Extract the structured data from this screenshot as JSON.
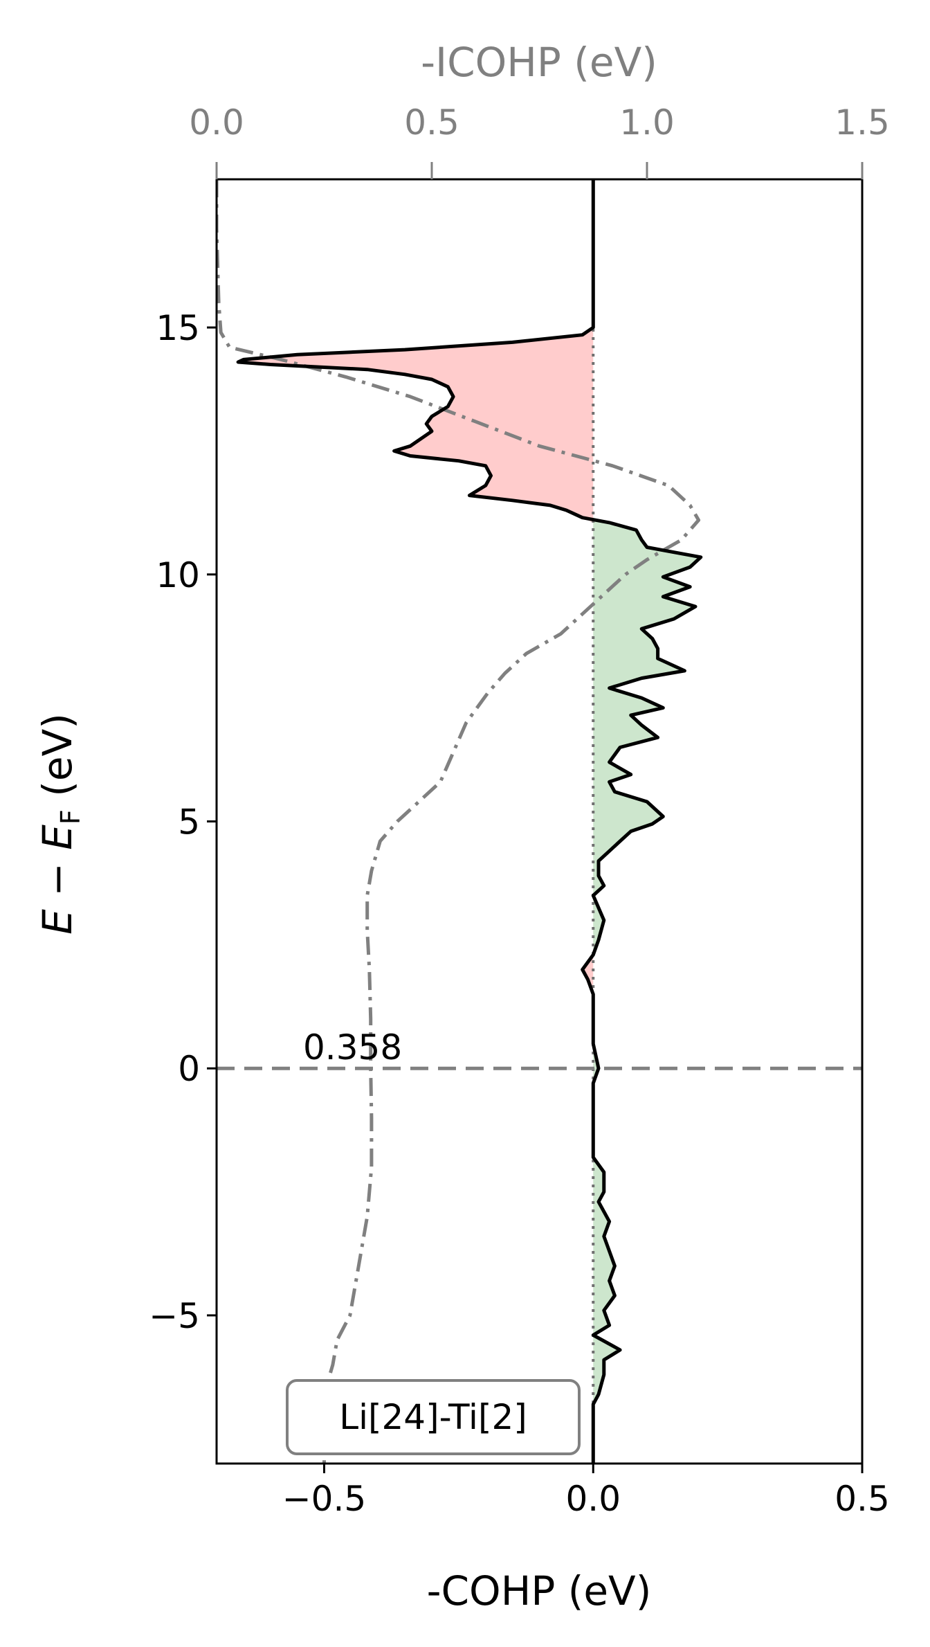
{
  "chart_data": {
    "type": "line",
    "orientation": "vertical (energy on y-axis)",
    "xlabel": "-COHP (eV)",
    "ylabel": {
      "pre": "E − E",
      "sub": "F",
      "post": " (eV)"
    },
    "top_xlabel": "-ICOHP (eV)",
    "xlim": [
      -0.7,
      0.5
    ],
    "ylim": [
      -8,
      18
    ],
    "top_xlim": [
      0,
      1.5
    ],
    "x_ticks": [
      -0.5,
      0.0,
      0.5
    ],
    "x_tick_labels": [
      "−0.5",
      "0.0",
      "0.5"
    ],
    "y_ticks": [
      -5,
      0,
      5,
      10,
      15
    ],
    "y_tick_labels": [
      "−5",
      "0",
      "5",
      "10",
      "15"
    ],
    "top_ticks": [
      0.0,
      0.5,
      1.0,
      1.5
    ],
    "top_tick_labels": [
      "0.0",
      "0.5",
      "1.0",
      "1.5"
    ],
    "fermi_level": 0,
    "annotation": "0.358",
    "legend_label": "Li[24]-Ti[2]",
    "legend_position": "bottom-left",
    "grid": false,
    "colors": {
      "cohp": "#000000",
      "icohp": "#808080",
      "bonding_fill": "#ffcccc",
      "antibonding_fill": "#cde6cd",
      "zero_line": "#707070",
      "fermi_line": "#808080"
    },
    "series": [
      {
        "role": "cohp",
        "points": [
          [
            0.0,
            18.0
          ],
          [
            0.0,
            15.5
          ],
          [
            0.0,
            15.0
          ],
          [
            -0.02,
            14.85
          ],
          [
            -0.15,
            14.7
          ],
          [
            -0.35,
            14.55
          ],
          [
            -0.55,
            14.45
          ],
          [
            -0.65,
            14.35
          ],
          [
            -0.66,
            14.3
          ],
          [
            -0.6,
            14.25
          ],
          [
            -0.42,
            14.15
          ],
          [
            -0.35,
            14.05
          ],
          [
            -0.3,
            13.95
          ],
          [
            -0.27,
            13.8
          ],
          [
            -0.26,
            13.6
          ],
          [
            -0.27,
            13.4
          ],
          [
            -0.3,
            13.2
          ],
          [
            -0.31,
            13.05
          ],
          [
            -0.3,
            12.9
          ],
          [
            -0.34,
            12.6
          ],
          [
            -0.37,
            12.5
          ],
          [
            -0.34,
            12.4
          ],
          [
            -0.25,
            12.3
          ],
          [
            -0.2,
            12.2
          ],
          [
            -0.19,
            12.0
          ],
          [
            -0.2,
            11.8
          ],
          [
            -0.23,
            11.6
          ],
          [
            -0.15,
            11.5
          ],
          [
            -0.08,
            11.4
          ],
          [
            -0.05,
            11.3
          ],
          [
            -0.02,
            11.15
          ],
          [
            0.03,
            11.05
          ],
          [
            0.08,
            10.9
          ],
          [
            0.09,
            10.7
          ],
          [
            0.1,
            10.55
          ],
          [
            0.15,
            10.45
          ],
          [
            0.2,
            10.35
          ],
          [
            0.18,
            10.15
          ],
          [
            0.13,
            9.95
          ],
          [
            0.18,
            9.75
          ],
          [
            0.13,
            9.55
          ],
          [
            0.19,
            9.35
          ],
          [
            0.15,
            9.1
          ],
          [
            0.09,
            8.9
          ],
          [
            0.11,
            8.7
          ],
          [
            0.12,
            8.5
          ],
          [
            0.12,
            8.3
          ],
          [
            0.17,
            8.05
          ],
          [
            0.09,
            7.9
          ],
          [
            0.03,
            7.7
          ],
          [
            0.09,
            7.5
          ],
          [
            0.13,
            7.3
          ],
          [
            0.07,
            7.15
          ],
          [
            0.09,
            6.95
          ],
          [
            0.12,
            6.7
          ],
          [
            0.05,
            6.5
          ],
          [
            0.03,
            6.2
          ],
          [
            0.07,
            5.95
          ],
          [
            0.03,
            5.8
          ],
          [
            0.04,
            5.6
          ],
          [
            0.1,
            5.4
          ],
          [
            0.13,
            5.1
          ],
          [
            0.11,
            4.95
          ],
          [
            0.07,
            4.8
          ],
          [
            0.05,
            4.6
          ],
          [
            0.03,
            4.4
          ],
          [
            0.01,
            4.2
          ],
          [
            0.01,
            3.9
          ],
          [
            0.02,
            3.7
          ],
          [
            0.0,
            3.5
          ],
          [
            0.02,
            3.0
          ],
          [
            0.01,
            2.6
          ],
          [
            0.0,
            2.3
          ],
          [
            -0.02,
            2.0
          ],
          [
            -0.01,
            1.8
          ],
          [
            0.0,
            1.5
          ],
          [
            0.0,
            0.5
          ],
          [
            0.01,
            0.0
          ],
          [
            0.0,
            -0.3
          ],
          [
            0.0,
            -1.8
          ],
          [
            0.02,
            -2.1
          ],
          [
            0.02,
            -2.5
          ],
          [
            0.01,
            -2.7
          ],
          [
            0.03,
            -3.1
          ],
          [
            0.02,
            -3.4
          ],
          [
            0.03,
            -3.7
          ],
          [
            0.04,
            -4.0
          ],
          [
            0.03,
            -4.3
          ],
          [
            0.04,
            -4.6
          ],
          [
            0.02,
            -4.9
          ],
          [
            0.03,
            -5.2
          ],
          [
            0.0,
            -5.4
          ],
          [
            0.05,
            -5.7
          ],
          [
            0.02,
            -5.9
          ],
          [
            0.02,
            -6.2
          ],
          [
            0.01,
            -6.6
          ],
          [
            0.0,
            -6.8
          ],
          [
            0.0,
            -8.0
          ]
        ]
      },
      {
        "role": "icohp",
        "points": [
          [
            0.0,
            18.0
          ],
          [
            0.0,
            17.0
          ],
          [
            0.005,
            15.5
          ],
          [
            0.01,
            14.9
          ],
          [
            0.03,
            14.6
          ],
          [
            0.15,
            14.35
          ],
          [
            0.3,
            14.0
          ],
          [
            0.45,
            13.6
          ],
          [
            0.6,
            13.1
          ],
          [
            0.75,
            12.6
          ],
          [
            0.92,
            12.2
          ],
          [
            1.05,
            11.8
          ],
          [
            1.1,
            11.4
          ],
          [
            1.12,
            11.1
          ],
          [
            1.08,
            10.7
          ],
          [
            1.0,
            10.3
          ],
          [
            0.95,
            10.0
          ],
          [
            0.9,
            9.6
          ],
          [
            0.85,
            9.2
          ],
          [
            0.8,
            8.8
          ],
          [
            0.72,
            8.4
          ],
          [
            0.67,
            8.0
          ],
          [
            0.63,
            7.6
          ],
          [
            0.58,
            7.0
          ],
          [
            0.55,
            6.4
          ],
          [
            0.52,
            5.8
          ],
          [
            0.47,
            5.4
          ],
          [
            0.42,
            5.0
          ],
          [
            0.38,
            4.6
          ],
          [
            0.36,
            4.0
          ],
          [
            0.35,
            3.5
          ],
          [
            0.35,
            2.8
          ],
          [
            0.355,
            2.0
          ],
          [
            0.358,
            1.0
          ],
          [
            0.358,
            0.0
          ],
          [
            0.36,
            -1.0
          ],
          [
            0.36,
            -2.0
          ],
          [
            0.35,
            -3.0
          ],
          [
            0.33,
            -4.0
          ],
          [
            0.31,
            -5.0
          ],
          [
            0.28,
            -5.5
          ],
          [
            0.27,
            -6.0
          ],
          [
            0.26,
            -6.3
          ],
          [
            0.25,
            -7.0
          ],
          [
            0.25,
            -8.0
          ]
        ]
      }
    ]
  }
}
